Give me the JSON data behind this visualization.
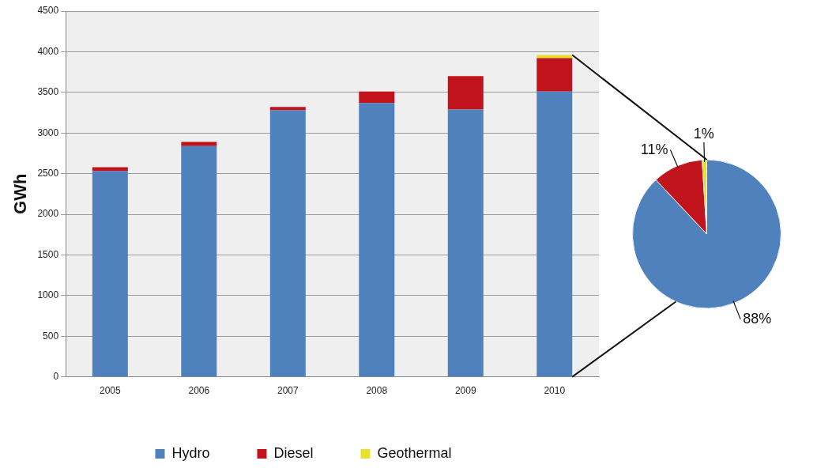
{
  "chart_data": [
    {
      "type": "bar",
      "ylabel": "GWh",
      "categories": [
        "2005",
        "2006",
        "2007",
        "2008",
        "2009",
        "2010"
      ],
      "stacked": true,
      "series": [
        {
          "name": "Hydro",
          "color": "#4f81bd",
          "values": [
            2530,
            2840,
            3280,
            3370,
            3290,
            3510
          ]
        },
        {
          "name": "Diesel",
          "color": "#c0131c",
          "values": [
            50,
            50,
            40,
            140,
            410,
            410
          ]
        },
        {
          "name": "Geothermal",
          "color": "#e8e02a",
          "values": [
            0,
            0,
            0,
            0,
            0,
            40
          ]
        }
      ],
      "ylim": [
        0,
        4500
      ],
      "yticks": [
        0,
        500,
        1000,
        1500,
        2000,
        2500,
        3000,
        3500,
        4000,
        4500
      ],
      "grid": "y",
      "legend": "bottom"
    },
    {
      "type": "pie",
      "categories": [
        null,
        null,
        null
      ],
      "values": [
        88,
        11,
        1
      ],
      "colors": [
        "#4f81bd",
        "#c0131c",
        "#e8e02a"
      ],
      "value_labels": [
        "88%",
        "11%",
        "1%"
      ],
      "legend": false
    }
  ]
}
